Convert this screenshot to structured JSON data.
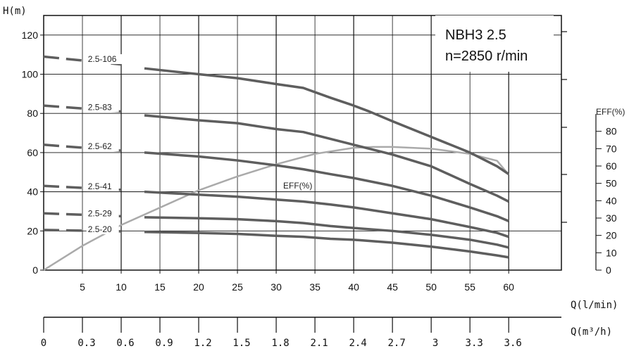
{
  "chart_data": {
    "type": "line",
    "title": "NBH3 2.5",
    "subtitle": "n=2850 r/min",
    "ylabel": "H(m)",
    "xlabel": "Q(l/min)",
    "x2label": "Q(m³/h)",
    "eff_axis_label": "EFF(%)",
    "eff_curve_label": "EFF(%)",
    "xlim": [
      0,
      66.8
    ],
    "ylim": [
      0,
      130
    ],
    "eff_lim": [
      0,
      100
    ],
    "x_ticks": [
      "5",
      "10",
      "15",
      "20",
      "25",
      "30",
      "35",
      "40",
      "45",
      "50",
      "55",
      "60"
    ],
    "x2_ticks": [
      "0",
      "0.3",
      "0.6",
      "0.9",
      "1.2",
      "1.5",
      "1.8",
      "2.1",
      "2.4",
      "2.7",
      "3",
      "3.3",
      "3.6"
    ],
    "y_ticks": [
      "0",
      "20",
      "40",
      "60",
      "80",
      "100",
      "120"
    ],
    "eff_ticks": [
      "0",
      "10",
      "20",
      "30",
      "40",
      "50",
      "60",
      "70",
      "80"
    ],
    "series": [
      {
        "name": "2.5-106",
        "dashed_x": [
          0,
          10
        ],
        "dashed_y": [
          109,
          105
        ],
        "x": [
          13,
          20,
          25,
          30,
          33.5,
          37,
          40,
          42,
          45,
          50,
          55,
          58.5,
          60
        ],
        "y": [
          103,
          100,
          98,
          95,
          93,
          88,
          84,
          81,
          76,
          68,
          60,
          53,
          49
        ]
      },
      {
        "name": "2.5-83",
        "dashed_x": [
          0,
          10
        ],
        "dashed_y": [
          84,
          81
        ],
        "x": [
          13,
          20,
          25,
          30,
          33.5,
          37,
          40,
          45,
          50,
          55,
          58.5,
          60
        ],
        "y": [
          79,
          76.5,
          75,
          72,
          70.5,
          67,
          64,
          59,
          53,
          44,
          38,
          35
        ]
      },
      {
        "name": "2.5-62",
        "dashed_x": [
          0,
          10
        ],
        "dashed_y": [
          64,
          61
        ],
        "x": [
          13,
          20,
          25,
          30,
          33.5,
          37,
          40,
          45,
          50,
          55,
          58.5,
          60
        ],
        "y": [
          60,
          58,
          56,
          53.5,
          51.5,
          49,
          47,
          43,
          38,
          32,
          27.5,
          25
        ]
      },
      {
        "name": "2.5-41",
        "dashed_x": [
          0,
          10
        ],
        "dashed_y": [
          43,
          41
        ],
        "x": [
          13,
          20,
          25,
          30,
          33.5,
          37,
          40,
          45,
          50,
          55,
          58.5,
          60
        ],
        "y": [
          40,
          38.5,
          37.5,
          36,
          35,
          33.5,
          32,
          29,
          26,
          22,
          19,
          17
        ]
      },
      {
        "name": "2.5-29",
        "dashed_x": [
          0,
          10
        ],
        "dashed_y": [
          29,
          27.5
        ],
        "x": [
          13,
          20,
          25,
          30,
          33.5,
          37,
          40,
          45,
          50,
          55,
          58.5,
          60
        ],
        "y": [
          27,
          26.5,
          26,
          25,
          24,
          22.5,
          21.5,
          20,
          18,
          15.5,
          13,
          11.5
        ]
      },
      {
        "name": "2.5-20",
        "dashed_x": [
          0,
          10
        ],
        "dashed_y": [
          20.5,
          19.8
        ],
        "x": [
          13,
          20,
          25,
          30,
          33.5,
          37,
          40,
          45,
          50,
          55,
          58.5,
          60
        ],
        "y": [
          19.5,
          19,
          18.5,
          17.5,
          17,
          16,
          15.5,
          14,
          12,
          9.5,
          7.5,
          6.5
        ]
      }
    ],
    "eff_series": {
      "x": [
        0,
        5,
        7.5,
        10,
        15,
        20,
        25,
        30,
        35,
        40,
        42.5,
        45,
        50,
        55,
        58.5,
        60
      ],
      "y": [
        0,
        14,
        20,
        26,
        36,
        46,
        54,
        61,
        67,
        70.5,
        71,
        71,
        70,
        67,
        63,
        55
      ]
    },
    "colors": {
      "head": "#5e5e5e",
      "eff": "#aaaaaa",
      "grid": "#111111"
    }
  }
}
